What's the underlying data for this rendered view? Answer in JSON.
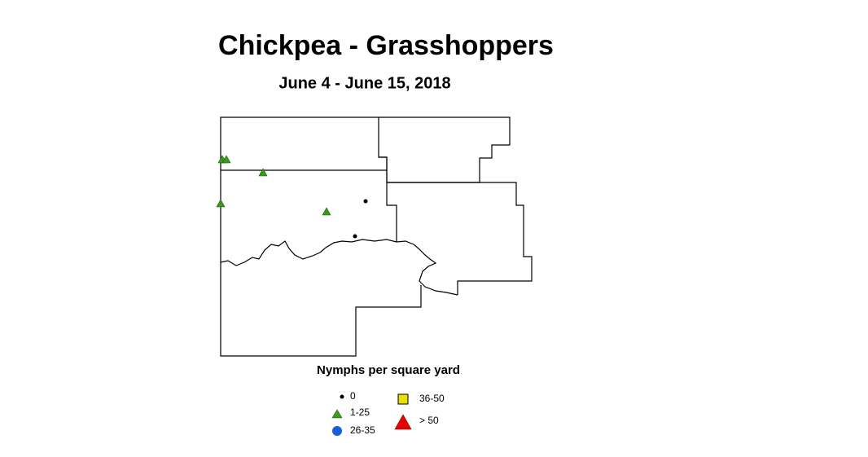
{
  "header": {
    "title": "Chickpea - Grasshoppers",
    "subtitle": "June 4 - June 15, 2018"
  },
  "legend": {
    "title": "Nymphs per square yard",
    "items": [
      {
        "label": "0"
      },
      {
        "label": "1-25"
      },
      {
        "label": "26-35"
      },
      {
        "label": "36-50"
      },
      {
        "label": "> 50"
      }
    ]
  }
}
